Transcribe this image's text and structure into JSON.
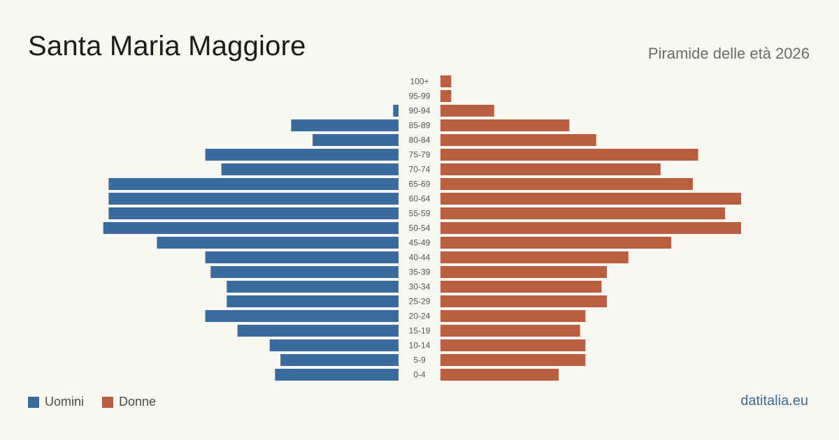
{
  "header": {
    "title": "Santa Maria Maggiore",
    "subtitle": "Piramide delle età 2026"
  },
  "legend": {
    "men_label": "Uomini",
    "women_label": "Donne"
  },
  "brand": {
    "label": "datitalia.eu"
  },
  "colors": {
    "men": "#3a6a9e",
    "women": "#b95e3e",
    "background": "#f9f7f2",
    "tick_text": "#555555"
  },
  "chart_data": {
    "type": "bar",
    "orientation": "horizontal-pyramid",
    "title": "Santa Maria Maggiore",
    "subtitle": "Piramide delle età 2026",
    "categories": [
      "100+",
      "95-99",
      "90-94",
      "85-89",
      "80-84",
      "75-79",
      "70-74",
      "65-69",
      "60-64",
      "55-59",
      "50-54",
      "45-49",
      "40-44",
      "35-39",
      "30-34",
      "25-29",
      "20-24",
      "15-19",
      "10-14",
      "5-9",
      "0-4"
    ],
    "series": [
      {
        "name": "Uomini",
        "side": "left",
        "values": [
          0,
          0,
          1,
          20,
          16,
          36,
          33,
          54,
          54,
          54,
          55,
          45,
          36,
          35,
          32,
          32,
          36,
          30,
          24,
          22,
          23
        ]
      },
      {
        "name": "Donne",
        "side": "right",
        "values": [
          2,
          2,
          10,
          24,
          29,
          48,
          41,
          47,
          56,
          53,
          56,
          43,
          35,
          31,
          30,
          31,
          27,
          26,
          27,
          27,
          22
        ]
      }
    ],
    "xlim": [
      0,
      56
    ],
    "grid": false,
    "legend_position": "bottom-left"
  }
}
